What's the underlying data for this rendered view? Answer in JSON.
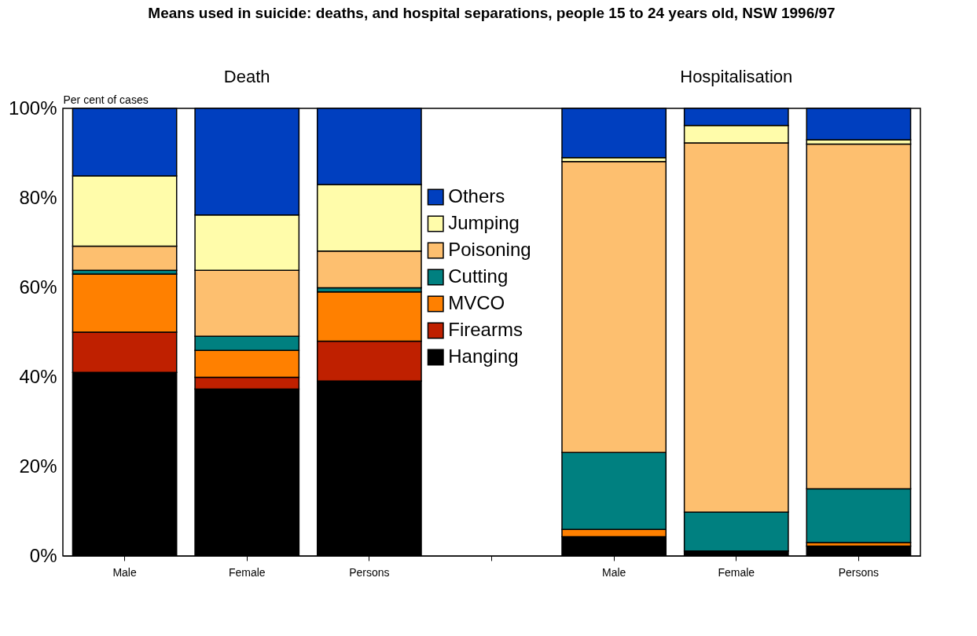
{
  "chart_data": {
    "type": "bar",
    "title": "Means used in suicide: deaths, and hospital separations, people 15 to 24 years old, NSW 1996/97",
    "ylabel": "Per cent of cases",
    "annotations": [
      "Death",
      "Hospitalisation"
    ],
    "categories": [
      "Male",
      "Female",
      "Persons",
      null,
      "Male",
      "Female",
      "Persons"
    ],
    "stacked": true,
    "series": [
      {
        "name": "Hanging",
        "color": "#000000",
        "values": [
          41,
          37.3,
          39.1,
          null,
          4.3,
          1.1,
          2.2
        ]
      },
      {
        "name": "Firearms",
        "color": "#bf2000",
        "values": [
          9,
          2.6,
          8.9,
          null,
          0,
          0,
          0
        ]
      },
      {
        "name": "MVCO",
        "color": "#ff8000",
        "values": [
          13,
          6.0,
          11.0,
          null,
          1.6,
          0,
          0.8
        ]
      },
      {
        "name": "Cutting",
        "color": "#008080",
        "values": [
          0.8,
          3.2,
          0.9,
          null,
          17.2,
          8.7,
          12.0
        ]
      },
      {
        "name": "Poisoning",
        "color": "#fdbf6f",
        "values": [
          5.4,
          14.7,
          8.2,
          null,
          65.0,
          82.5,
          77.0
        ]
      },
      {
        "name": "Jumping",
        "color": "#fffcaa",
        "values": [
          15.7,
          12.4,
          14.9,
          null,
          0.9,
          3.9,
          1.0
        ]
      },
      {
        "name": "Others",
        "color": "#003fbf",
        "values": [
          15.1,
          23.8,
          17.0,
          null,
          11.0,
          3.8,
          7.0
        ]
      }
    ],
    "ylim": [
      0,
      100
    ],
    "yticks": [
      {
        "value": 0,
        "label": "0%"
      },
      {
        "value": 20,
        "label": "20%"
      },
      {
        "value": 40,
        "label": "40%"
      },
      {
        "value": 60,
        "label": "60%"
      },
      {
        "value": 80,
        "label": "80%"
      },
      {
        "value": 100,
        "label": "100%"
      }
    ],
    "grid": false,
    "legend": "center"
  }
}
